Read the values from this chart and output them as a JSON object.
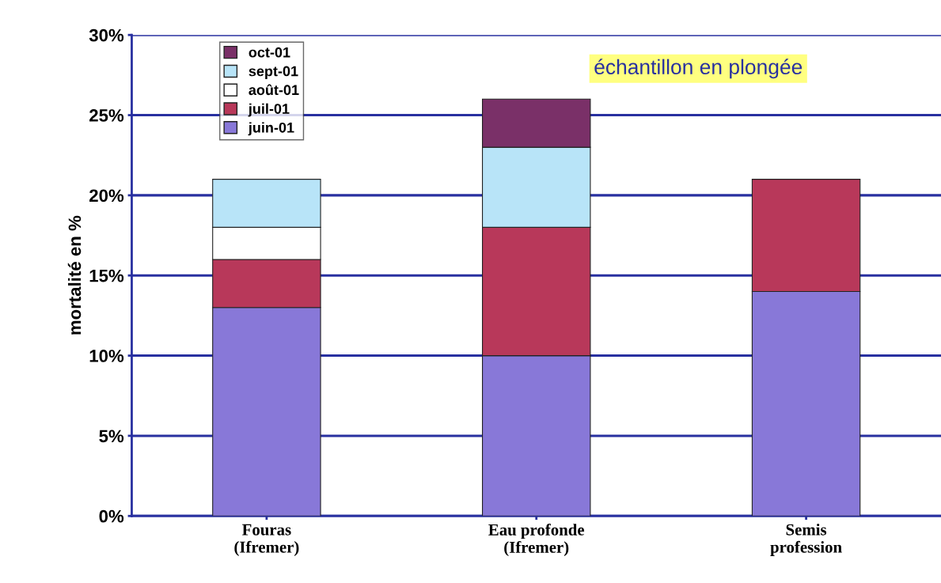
{
  "chart_data": {
    "type": "bar",
    "stacked": true,
    "ylabel": "mortalité en %",
    "categories": [
      "Fouras\n(Ifremer)",
      "Eau profonde\n(Ifremer)",
      "Semis\nprofession"
    ],
    "series": [
      {
        "name": "juin-01",
        "color": "#8878d8",
        "values": [
          13,
          10,
          14
        ]
      },
      {
        "name": "juil-01",
        "color": "#b8385a",
        "values": [
          3,
          8,
          7
        ]
      },
      {
        "name": "août-01",
        "color": "#ffffff",
        "values": [
          2,
          null,
          null
        ]
      },
      {
        "name": "sept-01",
        "color": "#b8e4f8",
        "values": [
          3,
          5,
          null
        ]
      },
      {
        "name": "oct-01",
        "color": "#7a3068",
        "values": [
          null,
          3,
          null
        ]
      }
    ],
    "ylim": [
      0,
      30
    ],
    "yticks": [
      {
        "value": 0,
        "label": "0%"
      },
      {
        "value": 5,
        "label": "5%"
      },
      {
        "value": 10,
        "label": "10%"
      },
      {
        "value": 15,
        "label": "15%"
      },
      {
        "value": 20,
        "label": "20%"
      },
      {
        "value": 25,
        "label": "25%"
      },
      {
        "value": 30,
        "label": "30%"
      }
    ],
    "grid": "y",
    "legend": "top left",
    "annotations": [
      "échantillon en plongée"
    ]
  }
}
